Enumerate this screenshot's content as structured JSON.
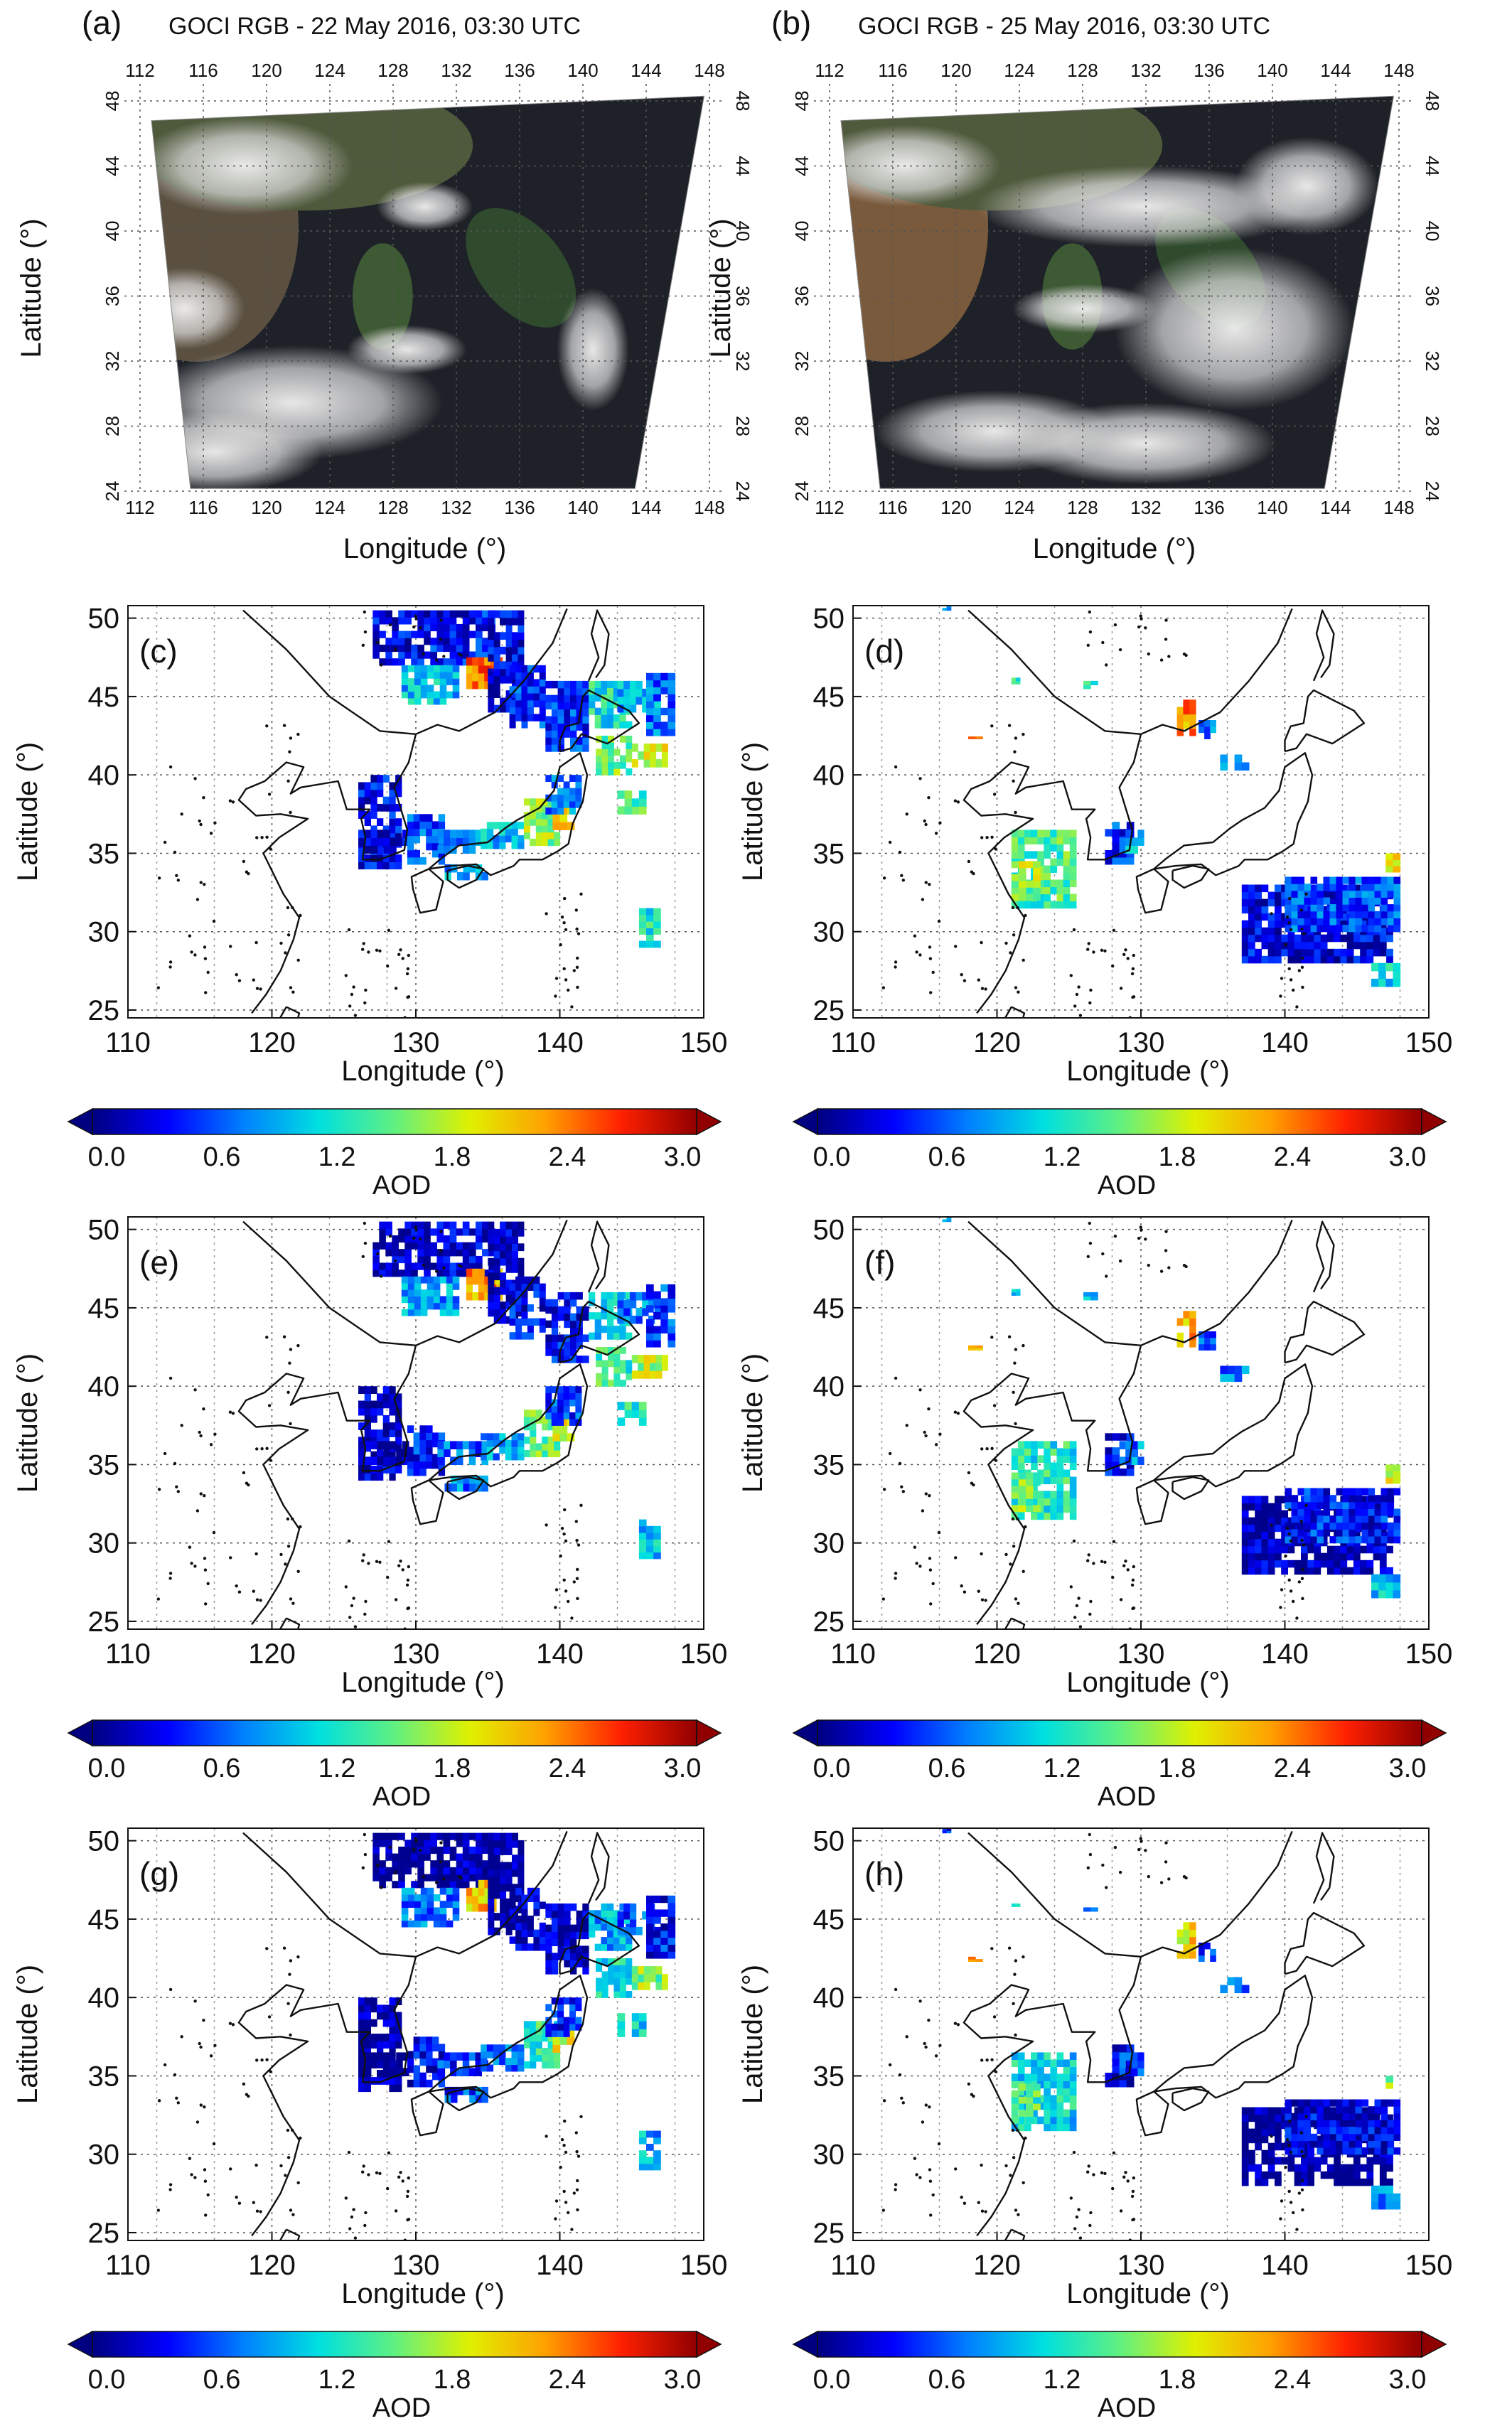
{
  "figure": {
    "rgb_lon_ticks": [
      "112",
      "116",
      "120",
      "124",
      "128",
      "132",
      "136",
      "140",
      "144",
      "148"
    ],
    "rgb_lat_ticks": [
      "24",
      "28",
      "32",
      "36",
      "40",
      "44",
      "48"
    ],
    "aod_lon_ticks": [
      "110",
      "120",
      "130",
      "140",
      "150"
    ],
    "aod_lat_ticks": [
      "25",
      "30",
      "35",
      "40",
      "45",
      "50"
    ],
    "colorbar": {
      "ticks": [
        "0.0",
        "0.6",
        "1.2",
        "1.8",
        "2.4",
        "3.0"
      ],
      "label": "AOD",
      "colors": [
        "#000080",
        "#0000ff",
        "#0080ff",
        "#00e0e0",
        "#60f080",
        "#e0f000",
        "#ffa000",
        "#ff2000",
        "#900000"
      ]
    },
    "panels": [
      {
        "id": "a",
        "letter": "(a)",
        "kind": "rgb",
        "title": "GOCI RGB - 22 May 2016, 03:30 UTC",
        "xlabel": "Longitude (°)",
        "ylabel": "Latitude (°)"
      },
      {
        "id": "b",
        "letter": "(b)",
        "kind": "rgb",
        "title": "GOCI RGB - 25 May 2016, 03:30 UTC",
        "xlabel": "Longitude (°)",
        "ylabel": "Latitude (°)"
      },
      {
        "id": "c",
        "letter": "(c)",
        "kind": "aod",
        "date": "22 May",
        "xlabel": "Longitude (°)",
        "ylabel": "Latitude (°)"
      },
      {
        "id": "d",
        "letter": "(d)",
        "kind": "aod",
        "date": "25 May",
        "xlabel": "Longitude (°)",
        "ylabel": "Latitude (°)"
      },
      {
        "id": "e",
        "letter": "(e)",
        "kind": "aod",
        "date": "22 May",
        "xlabel": "Longitude (°)",
        "ylabel": "Latitude (°)"
      },
      {
        "id": "f",
        "letter": "(f)",
        "kind": "aod",
        "date": "25 May",
        "xlabel": "Longitude (°)",
        "ylabel": "Latitude (°)"
      },
      {
        "id": "g",
        "letter": "(g)",
        "kind": "aod",
        "date": "22 May",
        "xlabel": "Longitude (°)",
        "ylabel": "Latitude (°)"
      },
      {
        "id": "h",
        "letter": "(h)",
        "kind": "aod",
        "date": "25 May",
        "xlabel": "Longitude (°)",
        "ylabel": "Latitude (°)"
      }
    ]
  }
}
